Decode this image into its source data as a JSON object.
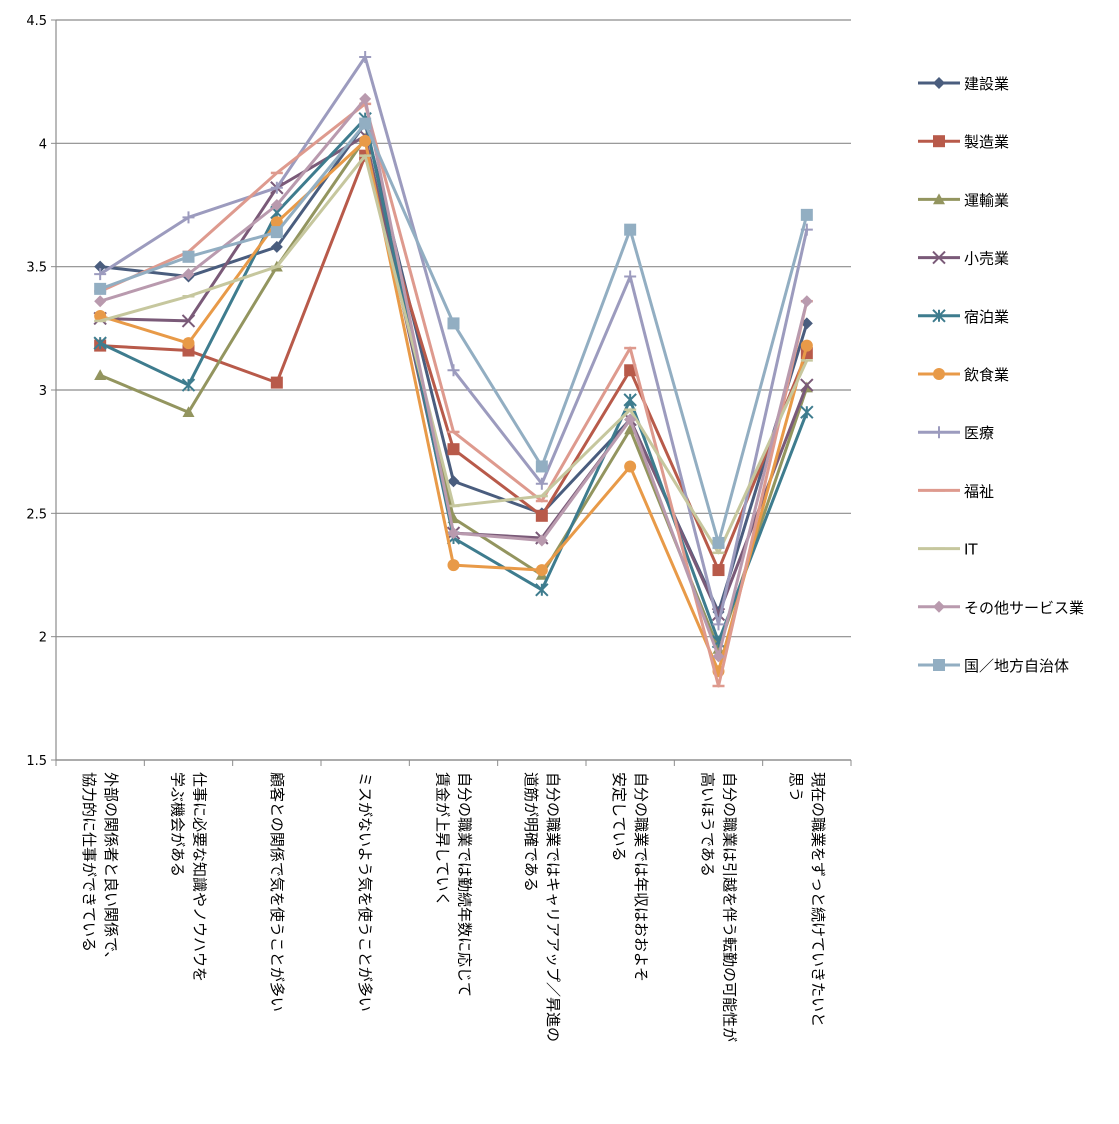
{
  "chart_data": {
    "type": "line",
    "ylim": [
      1.5,
      4.5
    ],
    "yticks": [
      "1.5",
      "2",
      "2.5",
      "3",
      "3.5",
      "4",
      "4.5"
    ],
    "grid": true,
    "legend_position": "right",
    "categories": [
      [
        "外部の関係者と良い関係で、",
        "協力的に仕事ができている"
      ],
      [
        "仕事に必要な知識やノウハウを",
        "学ぶ機会がある"
      ],
      [
        "顧客との関係で気を使うことが多い"
      ],
      [
        "ミスがないよう気を使うことが多い"
      ],
      [
        "自分の職業では勤続年数に応じて",
        "賃金が上昇していく"
      ],
      [
        "自分の職業ではキャリアアップ／昇進の",
        "道筋が明確である"
      ],
      [
        "自分の職業では年収はおおよそ",
        "安定している"
      ],
      [
        "自分の職業は引越を伴う転勤の可能性が",
        "高いほうである"
      ],
      [
        "現在の職業をずっと続けていきたいと",
        "思う"
      ]
    ],
    "series": [
      {
        "name": "建設業",
        "color": "#4A5D7E",
        "marker": "diamond",
        "values": [
          3.5,
          3.46,
          3.58,
          4.08,
          2.63,
          2.5,
          2.88,
          2.1,
          3.27
        ]
      },
      {
        "name": "製造業",
        "color": "#B85A4A",
        "marker": "square",
        "values": [
          3.18,
          3.16,
          3.03,
          3.95,
          2.76,
          2.49,
          3.08,
          2.27,
          3.15
        ]
      },
      {
        "name": "運輸業",
        "color": "#93955F",
        "marker": "triangle",
        "values": [
          3.06,
          2.91,
          3.5,
          4.02,
          2.48,
          2.25,
          2.84,
          1.95,
          3.01
        ]
      },
      {
        "name": "小売業",
        "color": "#7A5A78",
        "marker": "x",
        "values": [
          3.29,
          3.28,
          3.82,
          4.03,
          2.42,
          2.4,
          2.88,
          2.09,
          3.02
        ]
      },
      {
        "name": "宿泊業",
        "color": "#3E7C8E",
        "marker": "star",
        "values": [
          3.19,
          3.02,
          3.72,
          4.1,
          2.4,
          2.19,
          2.96,
          1.98,
          2.91
        ]
      },
      {
        "name": "飲食業",
        "color": "#E89A48",
        "marker": "circle",
        "values": [
          3.3,
          3.19,
          3.68,
          4.01,
          2.29,
          2.27,
          2.69,
          1.86,
          3.18
        ]
      },
      {
        "name": "医療",
        "color": "#9C9BBE",
        "marker": "plus",
        "values": [
          3.47,
          3.7,
          3.82,
          4.35,
          3.08,
          2.62,
          3.46,
          2.05,
          3.65
        ]
      },
      {
        "name": "福祉",
        "color": "#DE9A8E",
        "marker": "dash",
        "values": [
          3.4,
          3.56,
          3.88,
          4.16,
          2.83,
          2.55,
          3.17,
          1.8,
          3.36
        ]
      },
      {
        "name": "IT",
        "color": "#C6C79E",
        "marker": "dash",
        "values": [
          3.28,
          3.38,
          3.5,
          3.95,
          2.53,
          2.57,
          2.92,
          2.34,
          3.12
        ]
      },
      {
        "name": "その他サービス業",
        "color": "#B99AAE",
        "marker": "diamond",
        "values": [
          3.36,
          3.47,
          3.75,
          4.18,
          2.42,
          2.39,
          2.88,
          1.92,
          3.36
        ]
      },
      {
        "name": "国／地方自治体",
        "color": "#92AEC2",
        "marker": "square",
        "values": [
          3.41,
          3.54,
          3.64,
          4.08,
          3.27,
          2.69,
          3.65,
          2.38,
          3.71
        ]
      }
    ]
  }
}
